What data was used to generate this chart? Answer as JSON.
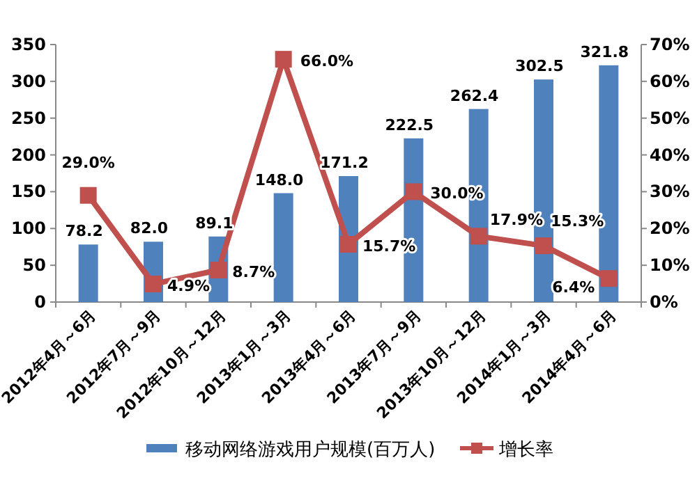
{
  "chart_data": {
    "type": "bar",
    "categories": [
      "2012年4月～6月",
      "2012年7月～9月",
      "2012年10月～12月",
      "2013年1月～3月",
      "2013年4月～6月",
      "2013年7月～9月",
      "2013年10月～12月",
      "2014年1月～3月",
      "2014年4月～6月"
    ],
    "series": [
      {
        "name": "移动网络游戏用户规模(百万人)",
        "color": "#4f81bd",
        "values": [
          78.2,
          82.0,
          89.1,
          148.0,
          171.2,
          222.5,
          262.4,
          302.5,
          321.8
        ],
        "value_labels": [
          "78.2",
          "82.0",
          "89.1",
          "148.0",
          "171.2",
          "222.5",
          "262.4",
          "302.5",
          "321.8"
        ]
      },
      {
        "name": "增长率",
        "type": "line",
        "axis": "y2",
        "color": "#c0504d",
        "marker": "square",
        "values": [
          29.0,
          4.9,
          8.7,
          66.0,
          15.7,
          30.0,
          17.9,
          15.3,
          6.4
        ],
        "value_labels": [
          "29.0%",
          "4.9%",
          "8.7%",
          "66.0%",
          "15.7%",
          "30.0%",
          "17.9%",
          "15.3%",
          "6.4%"
        ]
      }
    ],
    "ylim": [
      0,
      350
    ],
    "yticks": [
      0,
      50,
      100,
      150,
      200,
      250,
      300,
      350
    ],
    "y2lim": [
      0,
      70
    ],
    "y2ticks": [
      {
        "value": 0,
        "label": "0%"
      },
      {
        "value": 10,
        "label": "10%"
      },
      {
        "value": 20,
        "label": "20%"
      },
      {
        "value": 30,
        "label": "30%"
      },
      {
        "value": 40,
        "label": "40%"
      },
      {
        "value": 50,
        "label": "50%"
      },
      {
        "value": 60,
        "label": "60%"
      },
      {
        "value": 70,
        "label": "70%"
      }
    ],
    "legend": "bottom",
    "grid": false
  }
}
